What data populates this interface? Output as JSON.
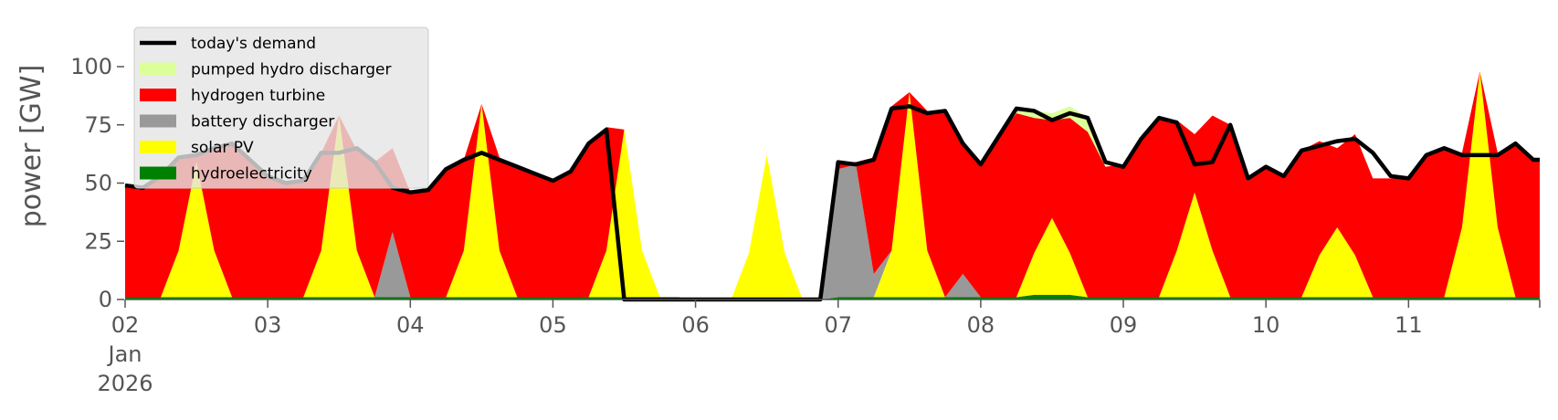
{
  "chart_data": {
    "type": "area",
    "title": "",
    "xlabel": "",
    "ylabel": "power [GW]",
    "ylim": [
      0,
      120
    ],
    "grid": false,
    "legend_placement": "upper-left",
    "x_start": "2026-01-02",
    "x_end": "2026-01-11",
    "x_step_hours": 3,
    "x_tick_labels": [
      {
        "lines": [
          "02",
          "Jan",
          "2026"
        ],
        "day": 0
      },
      {
        "lines": [
          "03"
        ],
        "day": 1
      },
      {
        "lines": [
          "04"
        ],
        "day": 2
      },
      {
        "lines": [
          "05"
        ],
        "day": 3
      },
      {
        "lines": [
          "06"
        ],
        "day": 4
      },
      {
        "lines": [
          "07"
        ],
        "day": 5
      },
      {
        "lines": [
          "08"
        ],
        "day": 6
      },
      {
        "lines": [
          "09"
        ],
        "day": 7
      },
      {
        "lines": [
          "10"
        ],
        "day": 8
      },
      {
        "lines": [
          "11"
        ],
        "day": 9
      }
    ],
    "y_ticks": [
      0,
      25,
      50,
      75,
      100
    ],
    "y_tick_labels": [
      "0",
      "25",
      "50",
      "75",
      "100"
    ],
    "series": [
      {
        "name": "hydroelectricity",
        "color": "#008000",
        "kind": "stack",
        "values": [
          1,
          1,
          1,
          1,
          1,
          1,
          1,
          1,
          1,
          1,
          1,
          1,
          1,
          1,
          1,
          1,
          1,
          1,
          1,
          1,
          1,
          1,
          1,
          1,
          1,
          1,
          1,
          1,
          1,
          1,
          1,
          1,
          0,
          0,
          0,
          0,
          0,
          0,
          0,
          0,
          1,
          1,
          1,
          1,
          1,
          1,
          1,
          1,
          1,
          1,
          1,
          2,
          2,
          2,
          1,
          1,
          1,
          1,
          1,
          1,
          1,
          1,
          1,
          1,
          1,
          1,
          1,
          1,
          1,
          1,
          1,
          1,
          1,
          1,
          1,
          1,
          1,
          1,
          1,
          1,
          1
        ]
      },
      {
        "name": "solar PV",
        "color": "#ffff00",
        "kind": "stack",
        "values": [
          0,
          0,
          0,
          20,
          58,
          20,
          0,
          0,
          0,
          0,
          0,
          20,
          78,
          20,
          0,
          0,
          0,
          0,
          0,
          20,
          83,
          20,
          0,
          0,
          0,
          0,
          0,
          20,
          72,
          20,
          0,
          0,
          0,
          0,
          0,
          20,
          62,
          20,
          0,
          0,
          0,
          0,
          0,
          20,
          88,
          20,
          0,
          0,
          0,
          0,
          0,
          18,
          33,
          18,
          0,
          0,
          0,
          0,
          0,
          20,
          45,
          20,
          0,
          0,
          0,
          0,
          0,
          18,
          30,
          18,
          0,
          0,
          0,
          0,
          0,
          30,
          97,
          30,
          0,
          0,
          0
        ]
      },
      {
        "name": "battery discharger",
        "color": "#999999",
        "kind": "stack",
        "values": [
          0,
          0,
          0,
          0,
          0,
          0,
          0,
          0,
          0,
          0,
          0,
          0,
          0,
          0,
          0,
          28,
          0,
          0,
          0,
          0,
          0,
          0,
          0,
          0,
          0,
          0,
          0,
          0,
          0,
          0,
          0,
          0,
          0,
          0,
          0,
          0,
          0,
          0,
          0,
          0,
          55,
          57,
          10,
          0,
          0,
          0,
          0,
          10,
          0,
          0,
          0,
          0,
          0,
          0,
          0,
          0,
          0,
          0,
          0,
          0,
          0,
          0,
          0,
          0,
          0,
          0,
          0,
          0,
          0,
          0,
          0,
          0,
          0,
          0,
          0,
          0,
          0,
          0,
          0,
          0,
          0
        ]
      },
      {
        "name": "hydrogen turbine",
        "color": "#ff0000",
        "kind": "stack",
        "values": [
          48,
          47,
          52,
          40,
          4,
          44,
          66,
          59,
          52,
          49,
          50,
          42,
          0,
          43,
          58,
          36,
          45,
          46,
          55,
          39,
          0,
          40,
          56,
          53,
          50,
          54,
          66,
          53,
          0,
          0,
          0,
          0,
          0,
          0,
          0,
          0,
          0,
          0,
          0,
          0,
          3,
          1,
          50,
          62,
          0,
          60,
          80,
          55,
          57,
          69,
          79,
          58,
          42,
          58,
          71,
          56,
          57,
          68,
          76,
          56,
          25,
          58,
          74,
          50,
          56,
          52,
          63,
          49,
          34,
          52,
          51,
          51,
          51,
          61,
          64,
          32,
          0,
          32,
          66,
          59,
          59
        ]
      },
      {
        "name": "pumped hydro discharger",
        "color": "#dbff99",
        "kind": "stack",
        "values": [
          0,
          0,
          0,
          0,
          0,
          0,
          0,
          0,
          0,
          0,
          0,
          0,
          0,
          0,
          0,
          0,
          0,
          0,
          0,
          0,
          0,
          0,
          0,
          0,
          0,
          0,
          0,
          0,
          0,
          0,
          0,
          0,
          0,
          0,
          0,
          0,
          0,
          0,
          0,
          0,
          0,
          0,
          0,
          0,
          0,
          0,
          0,
          0,
          0,
          0,
          2,
          3,
          3,
          5,
          6,
          0,
          0,
          0,
          0,
          0,
          0,
          0,
          0,
          0,
          0,
          0,
          0,
          0,
          0,
          0,
          0,
          0,
          0,
          0,
          0,
          0,
          0,
          0,
          0,
          0,
          0
        ]
      },
      {
        "name": "today's demand",
        "color": "#000000",
        "kind": "line",
        "values": [
          49,
          48,
          53,
          61,
          62,
          65,
          67,
          60,
          53,
          50,
          51,
          63,
          63,
          65,
          59,
          48,
          46,
          47,
          56,
          60,
          63,
          60,
          57,
          54,
          51,
          55,
          67,
          73,
          0,
          0,
          0,
          0,
          0,
          0,
          0,
          0,
          0,
          0,
          0,
          0,
          59,
          58,
          60,
          82,
          83,
          80,
          81,
          67,
          58,
          70,
          82,
          81,
          77,
          80,
          78,
          59,
          57,
          69,
          78,
          76,
          58,
          59,
          75,
          52,
          57,
          53,
          64,
          66,
          68,
          69,
          63,
          53,
          52,
          62,
          65,
          62,
          62,
          62,
          67,
          60,
          60
        ]
      }
    ]
  }
}
